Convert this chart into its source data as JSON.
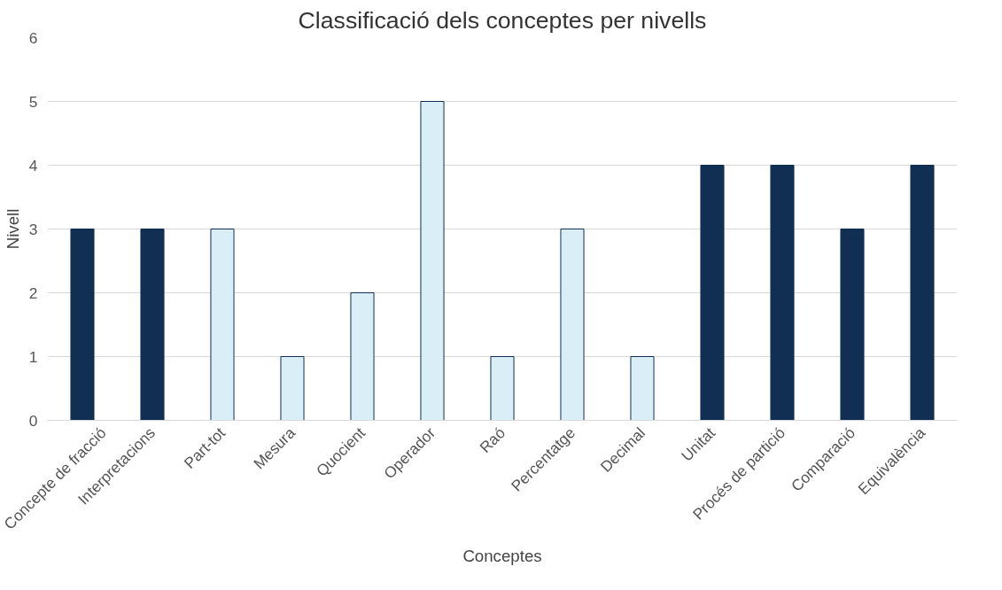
{
  "chart_data": {
    "type": "bar",
    "title": "Classificació dels conceptes per nivells",
    "xlabel": "Conceptes",
    "ylabel": "Nivell",
    "categories": [
      "Concepte de fracció",
      "Interpretacions",
      "Part-tot",
      "Mesura",
      "Quocient",
      "Operador",
      "Raó",
      "Percentatge",
      "Decimal",
      "Unitat",
      "Procés de partició",
      "Comparació",
      "Equivalència"
    ],
    "values": [
      3,
      3,
      3,
      1,
      2,
      5,
      1,
      3,
      1,
      4,
      4,
      3,
      4
    ],
    "colors": [
      "#112f52",
      "#112f52",
      "#daeef7",
      "#daeef7",
      "#daeef7",
      "#daeef7",
      "#daeef7",
      "#daeef7",
      "#daeef7",
      "#112f52",
      "#112f52",
      "#112f52",
      "#112f52"
    ],
    "ylim": [
      0,
      6
    ],
    "yticks": [
      0,
      1,
      2,
      3,
      4,
      5,
      6
    ],
    "grid": "y"
  }
}
